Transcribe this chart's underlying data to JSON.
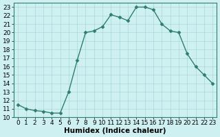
{
  "xlabel": "Humidex (Indice chaleur)",
  "x": [
    0,
    1,
    2,
    3,
    4,
    5,
    6,
    7,
    8,
    9,
    10,
    11,
    12,
    13,
    14,
    15,
    16,
    17,
    18,
    19,
    20,
    21,
    22,
    23
  ],
  "y": [
    11.5,
    11.0,
    10.8,
    10.7,
    10.5,
    10.5,
    13.0,
    16.7,
    20.0,
    20.2,
    20.7,
    22.1,
    21.8,
    21.4,
    23.0,
    23.0,
    22.7,
    21.0,
    20.2,
    20.0,
    17.5,
    16.0,
    15.0,
    14.0
  ],
  "line_color": "#2e7d6e",
  "marker": "D",
  "marker_size": 2.5,
  "bg_color": "#cef0f0",
  "grid_color": "#a8d8d8",
  "xlim": [
    -0.5,
    23.5
  ],
  "ylim": [
    10,
    23.5
  ],
  "yticks": [
    10,
    11,
    12,
    13,
    14,
    15,
    16,
    17,
    18,
    19,
    20,
    21,
    22,
    23
  ],
  "xticks": [
    0,
    1,
    2,
    3,
    4,
    5,
    6,
    7,
    8,
    9,
    10,
    11,
    12,
    13,
    14,
    15,
    16,
    17,
    18,
    19,
    20,
    21,
    22,
    23
  ],
  "tick_fontsize": 6.5,
  "xlabel_fontsize": 7.5,
  "linewidth": 1.0
}
